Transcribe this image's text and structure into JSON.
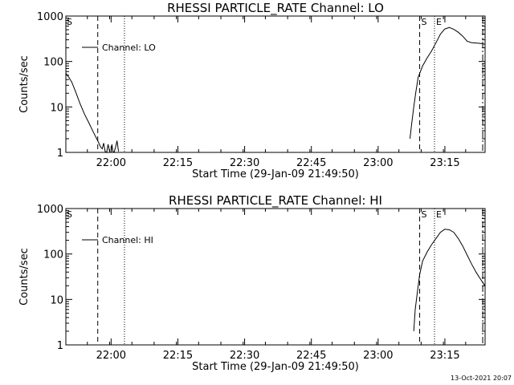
{
  "footer": {
    "timestamp": "13-Oct-2021 20:07"
  },
  "marker_labels": {
    "start": "S",
    "end": "E"
  },
  "chart_data": [
    {
      "type": "line",
      "title": "RHESSI PARTICLE_RATE Channel: LO",
      "xlabel": "Start Time (29-Jan-09 21:49:50)",
      "ylabel": "Counts/sec",
      "yscale": "log",
      "ylim": [
        1,
        1000
      ],
      "xlim_minutes_from_start": [
        0,
        94.2
      ],
      "y_tick_labels": [
        "1",
        "10",
        "100",
        "1000"
      ],
      "x_tick_labels": [
        "22:00",
        "22:15",
        "22:30",
        "22:45",
        "23:00",
        "23:15"
      ],
      "legend": {
        "label": "Channel: LO",
        "placement": "top-left"
      },
      "grid": false,
      "series": [
        {
          "name": "Channel: LO",
          "segments": [
            {
              "x": [
                "21:49:50",
                "21:50:30",
                "21:51:10",
                "21:52:00",
                "21:53:00",
                "21:54:00",
                "21:55:00",
                "21:56:00",
                "21:57:00",
                "21:57:40",
                "21:58:00",
                "21:58:20",
                "21:58:40",
                "21:59:00",
                "21:59:20",
                "21:59:40"
              ],
              "y": [
                55,
                45,
                35,
                22,
                12,
                7,
                4.5,
                2.8,
                1.8,
                1.3,
                1.2,
                1.6,
                1.05,
                1.0,
                1.5,
                1.05
              ]
            },
            {
              "x": [
                "22:00:00",
                "22:00:10",
                "22:00:25",
                "22:00:40",
                "22:01:00",
                "22:01:20",
                "22:01:40"
              ],
              "y": [
                1.0,
                1.5,
                1.05,
                1.0,
                1.3,
                1.8,
                1.05
              ]
            },
            {
              "x": [
                "23:07:10",
                "23:07:30",
                "23:08:00",
                "23:08:30",
                "23:09:00",
                "23:10:00",
                "23:11:00",
                "23:12:00",
                "23:13:00",
                "23:14:00",
                "23:15:00",
                "23:16:00",
                "23:17:00",
                "23:18:00",
                "23:19:00",
                "23:20:00",
                "23:21:00",
                "23:22:00",
                "23:23:00",
                "23:24:00"
              ],
              "y": [
                2,
                4,
                10,
                22,
                45,
                80,
                120,
                170,
                260,
                400,
                520,
                560,
                510,
                440,
                360,
                280,
                260,
                255,
                250,
                240
              ]
            }
          ]
        }
      ],
      "vertical_lines": [
        {
          "time": "21:57:00",
          "style": "dashed"
        },
        {
          "time": "22:03:00",
          "style": "dotted"
        },
        {
          "time": "23:09:20",
          "style": "dashed",
          "label": "S"
        },
        {
          "time": "23:12:40",
          "style": "dotted",
          "label": "E"
        },
        {
          "time": "23:23:30",
          "style": "dash-dot"
        }
      ]
    },
    {
      "type": "line",
      "title": "RHESSI PARTICLE_RATE Channel: HI",
      "xlabel": "Start Time (29-Jan-09 21:49:50)",
      "ylabel": "Counts/sec",
      "yscale": "log",
      "ylim": [
        1,
        1000
      ],
      "xlim_minutes_from_start": [
        0,
        94.2
      ],
      "y_tick_labels": [
        "1",
        "10",
        "100",
        "1000"
      ],
      "x_tick_labels": [
        "22:00",
        "22:15",
        "22:30",
        "22:45",
        "23:00",
        "23:15"
      ],
      "legend": {
        "label": "Channel: HI",
        "placement": "top-left"
      },
      "grid": false,
      "series": [
        {
          "name": "Channel: HI",
          "segments": [
            {
              "x": [
                "23:08:00",
                "23:08:20",
                "23:08:50",
                "23:09:20",
                "23:10:00",
                "23:11:00",
                "23:12:00",
                "23:13:00",
                "23:14:00",
                "23:15:00",
                "23:16:00",
                "23:17:00",
                "23:18:00",
                "23:19:00",
                "23:20:00",
                "23:21:00",
                "23:22:00",
                "23:23:00",
                "23:24:00"
              ],
              "y": [
                2,
                6,
                15,
                35,
                70,
                110,
                160,
                220,
                300,
                350,
                340,
                300,
                220,
                150,
                95,
                60,
                40,
                28,
                20
              ]
            }
          ]
        }
      ],
      "vertical_lines": [
        {
          "time": "21:57:00",
          "style": "dashed"
        },
        {
          "time": "22:03:00",
          "style": "dotted"
        },
        {
          "time": "23:09:20",
          "style": "dashed",
          "label": "S"
        },
        {
          "time": "23:12:40",
          "style": "dotted",
          "label": "E"
        },
        {
          "time": "23:23:30",
          "style": "dash-dot"
        }
      ]
    }
  ]
}
